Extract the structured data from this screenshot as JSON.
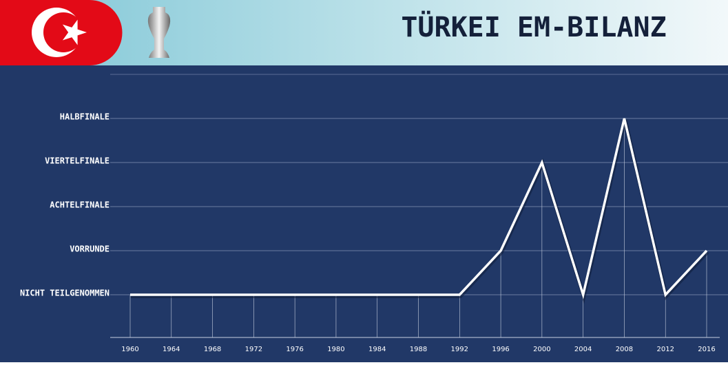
{
  "chart_data": {
    "type": "line",
    "title": "TÜRKEI EM-BILANZ",
    "x": [
      1960,
      1964,
      1968,
      1972,
      1976,
      1980,
      1984,
      1988,
      1992,
      1996,
      2000,
      2004,
      2008,
      2012,
      2016
    ],
    "series": [
      {
        "name": "Türkei",
        "color": "#ffffff",
        "values": [
          0,
          0,
          0,
          0,
          0,
          0,
          0,
          0,
          0,
          1,
          3,
          0,
          4,
          0,
          1
        ]
      }
    ],
    "xlim": [
      1960,
      2016
    ],
    "xticks": [
      1960,
      1964,
      1968,
      1972,
      1976,
      1980,
      1984,
      1988,
      1992,
      1996,
      2000,
      2004,
      2008,
      2012,
      2016
    ],
    "ylim": [
      -1,
      5
    ],
    "yticks": [
      {
        "value": 0,
        "label": "NICHT TEILGENOMMEN"
      },
      {
        "value": 1,
        "label": "VORRUNDE"
      },
      {
        "value": 2,
        "label": "ACHTELFINALE"
      },
      {
        "value": 3,
        "label": "VIERTELFINALE"
      },
      {
        "value": 4,
        "label": "HALBFINALE"
      }
    ],
    "grid": true
  }
}
